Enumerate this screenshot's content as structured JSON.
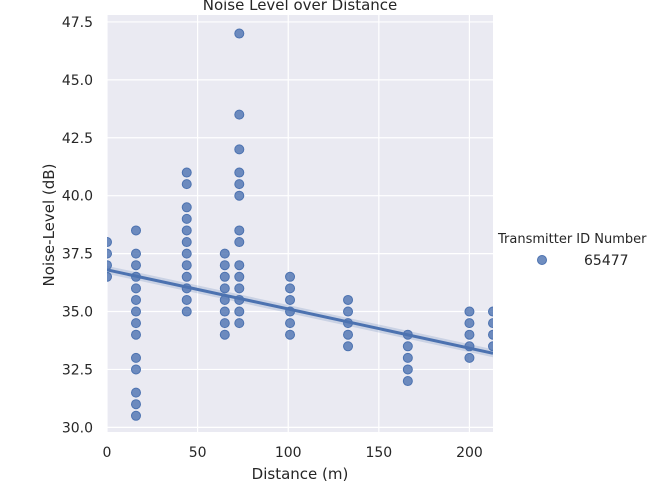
{
  "chart_data": {
    "type": "scatter",
    "title": "Noise Level over Distance",
    "xlabel": "Distance (m)",
    "ylabel": "Noise-Level (dB)",
    "xlim": [
      0,
      213
    ],
    "ylim": [
      29.8,
      47.8
    ],
    "xticks": [
      0,
      50,
      100,
      150,
      200
    ],
    "xtick_labels": [
      "0",
      "50",
      "100",
      "150",
      "200"
    ],
    "yticks": [
      30.0,
      32.5,
      35.0,
      37.5,
      40.0,
      42.5,
      45.0,
      47.5
    ],
    "ytick_labels": [
      "30.0",
      "32.5",
      "35.0",
      "37.5",
      "40.0",
      "42.5",
      "45.0",
      "47.5"
    ],
    "grid": true,
    "legend": {
      "title": "Transmitter ID Number",
      "placement": "right"
    },
    "series": [
      {
        "name": "65477",
        "color": "#4c72b0",
        "points": [
          [
            0,
            38.0
          ],
          [
            0,
            37.5
          ],
          [
            0,
            37.0
          ],
          [
            0,
            36.5
          ],
          [
            16,
            38.5
          ],
          [
            16,
            37.5
          ],
          [
            16,
            37.0
          ],
          [
            16,
            36.5
          ],
          [
            16,
            36.0
          ],
          [
            16,
            35.5
          ],
          [
            16,
            35.0
          ],
          [
            16,
            34.5
          ],
          [
            16,
            34.0
          ],
          [
            16,
            33.0
          ],
          [
            16,
            32.5
          ],
          [
            16,
            31.5
          ],
          [
            16,
            31.0
          ],
          [
            16,
            30.5
          ],
          [
            44,
            41.0
          ],
          [
            44,
            40.5
          ],
          [
            44,
            39.5
          ],
          [
            44,
            39.0
          ],
          [
            44,
            38.5
          ],
          [
            44,
            38.0
          ],
          [
            44,
            37.5
          ],
          [
            44,
            37.0
          ],
          [
            44,
            36.5
          ],
          [
            44,
            36.0
          ],
          [
            44,
            35.5
          ],
          [
            44,
            35.0
          ],
          [
            65,
            37.5
          ],
          [
            65,
            37.0
          ],
          [
            65,
            36.5
          ],
          [
            65,
            36.0
          ],
          [
            65,
            35.5
          ],
          [
            65,
            35.0
          ],
          [
            65,
            34.5
          ],
          [
            65,
            34.0
          ],
          [
            73,
            47.0
          ],
          [
            73,
            43.5
          ],
          [
            73,
            42.0
          ],
          [
            73,
            41.0
          ],
          [
            73,
            40.5
          ],
          [
            73,
            40.0
          ],
          [
            73,
            38.5
          ],
          [
            73,
            38.0
          ],
          [
            73,
            37.0
          ],
          [
            73,
            36.5
          ],
          [
            73,
            36.0
          ],
          [
            73,
            35.5
          ],
          [
            73,
            35.0
          ],
          [
            73,
            34.5
          ],
          [
            101,
            36.5
          ],
          [
            101,
            36.0
          ],
          [
            101,
            35.5
          ],
          [
            101,
            35.0
          ],
          [
            101,
            34.5
          ],
          [
            101,
            34.0
          ],
          [
            133,
            35.5
          ],
          [
            133,
            35.0
          ],
          [
            133,
            34.5
          ],
          [
            133,
            34.0
          ],
          [
            133,
            33.5
          ],
          [
            166,
            34.0
          ],
          [
            166,
            33.5
          ],
          [
            166,
            33.0
          ],
          [
            166,
            32.5
          ],
          [
            166,
            32.0
          ],
          [
            200,
            35.0
          ],
          [
            200,
            34.5
          ],
          [
            200,
            34.0
          ],
          [
            200,
            33.5
          ],
          [
            200,
            33.0
          ],
          [
            213,
            35.0
          ],
          [
            213,
            34.5
          ],
          [
            213,
            34.0
          ],
          [
            213,
            33.5
          ]
        ]
      }
    ],
    "regression": {
      "x": [
        0,
        213
      ],
      "y": [
        36.8,
        33.2
      ],
      "color": "#4c72b0"
    }
  }
}
